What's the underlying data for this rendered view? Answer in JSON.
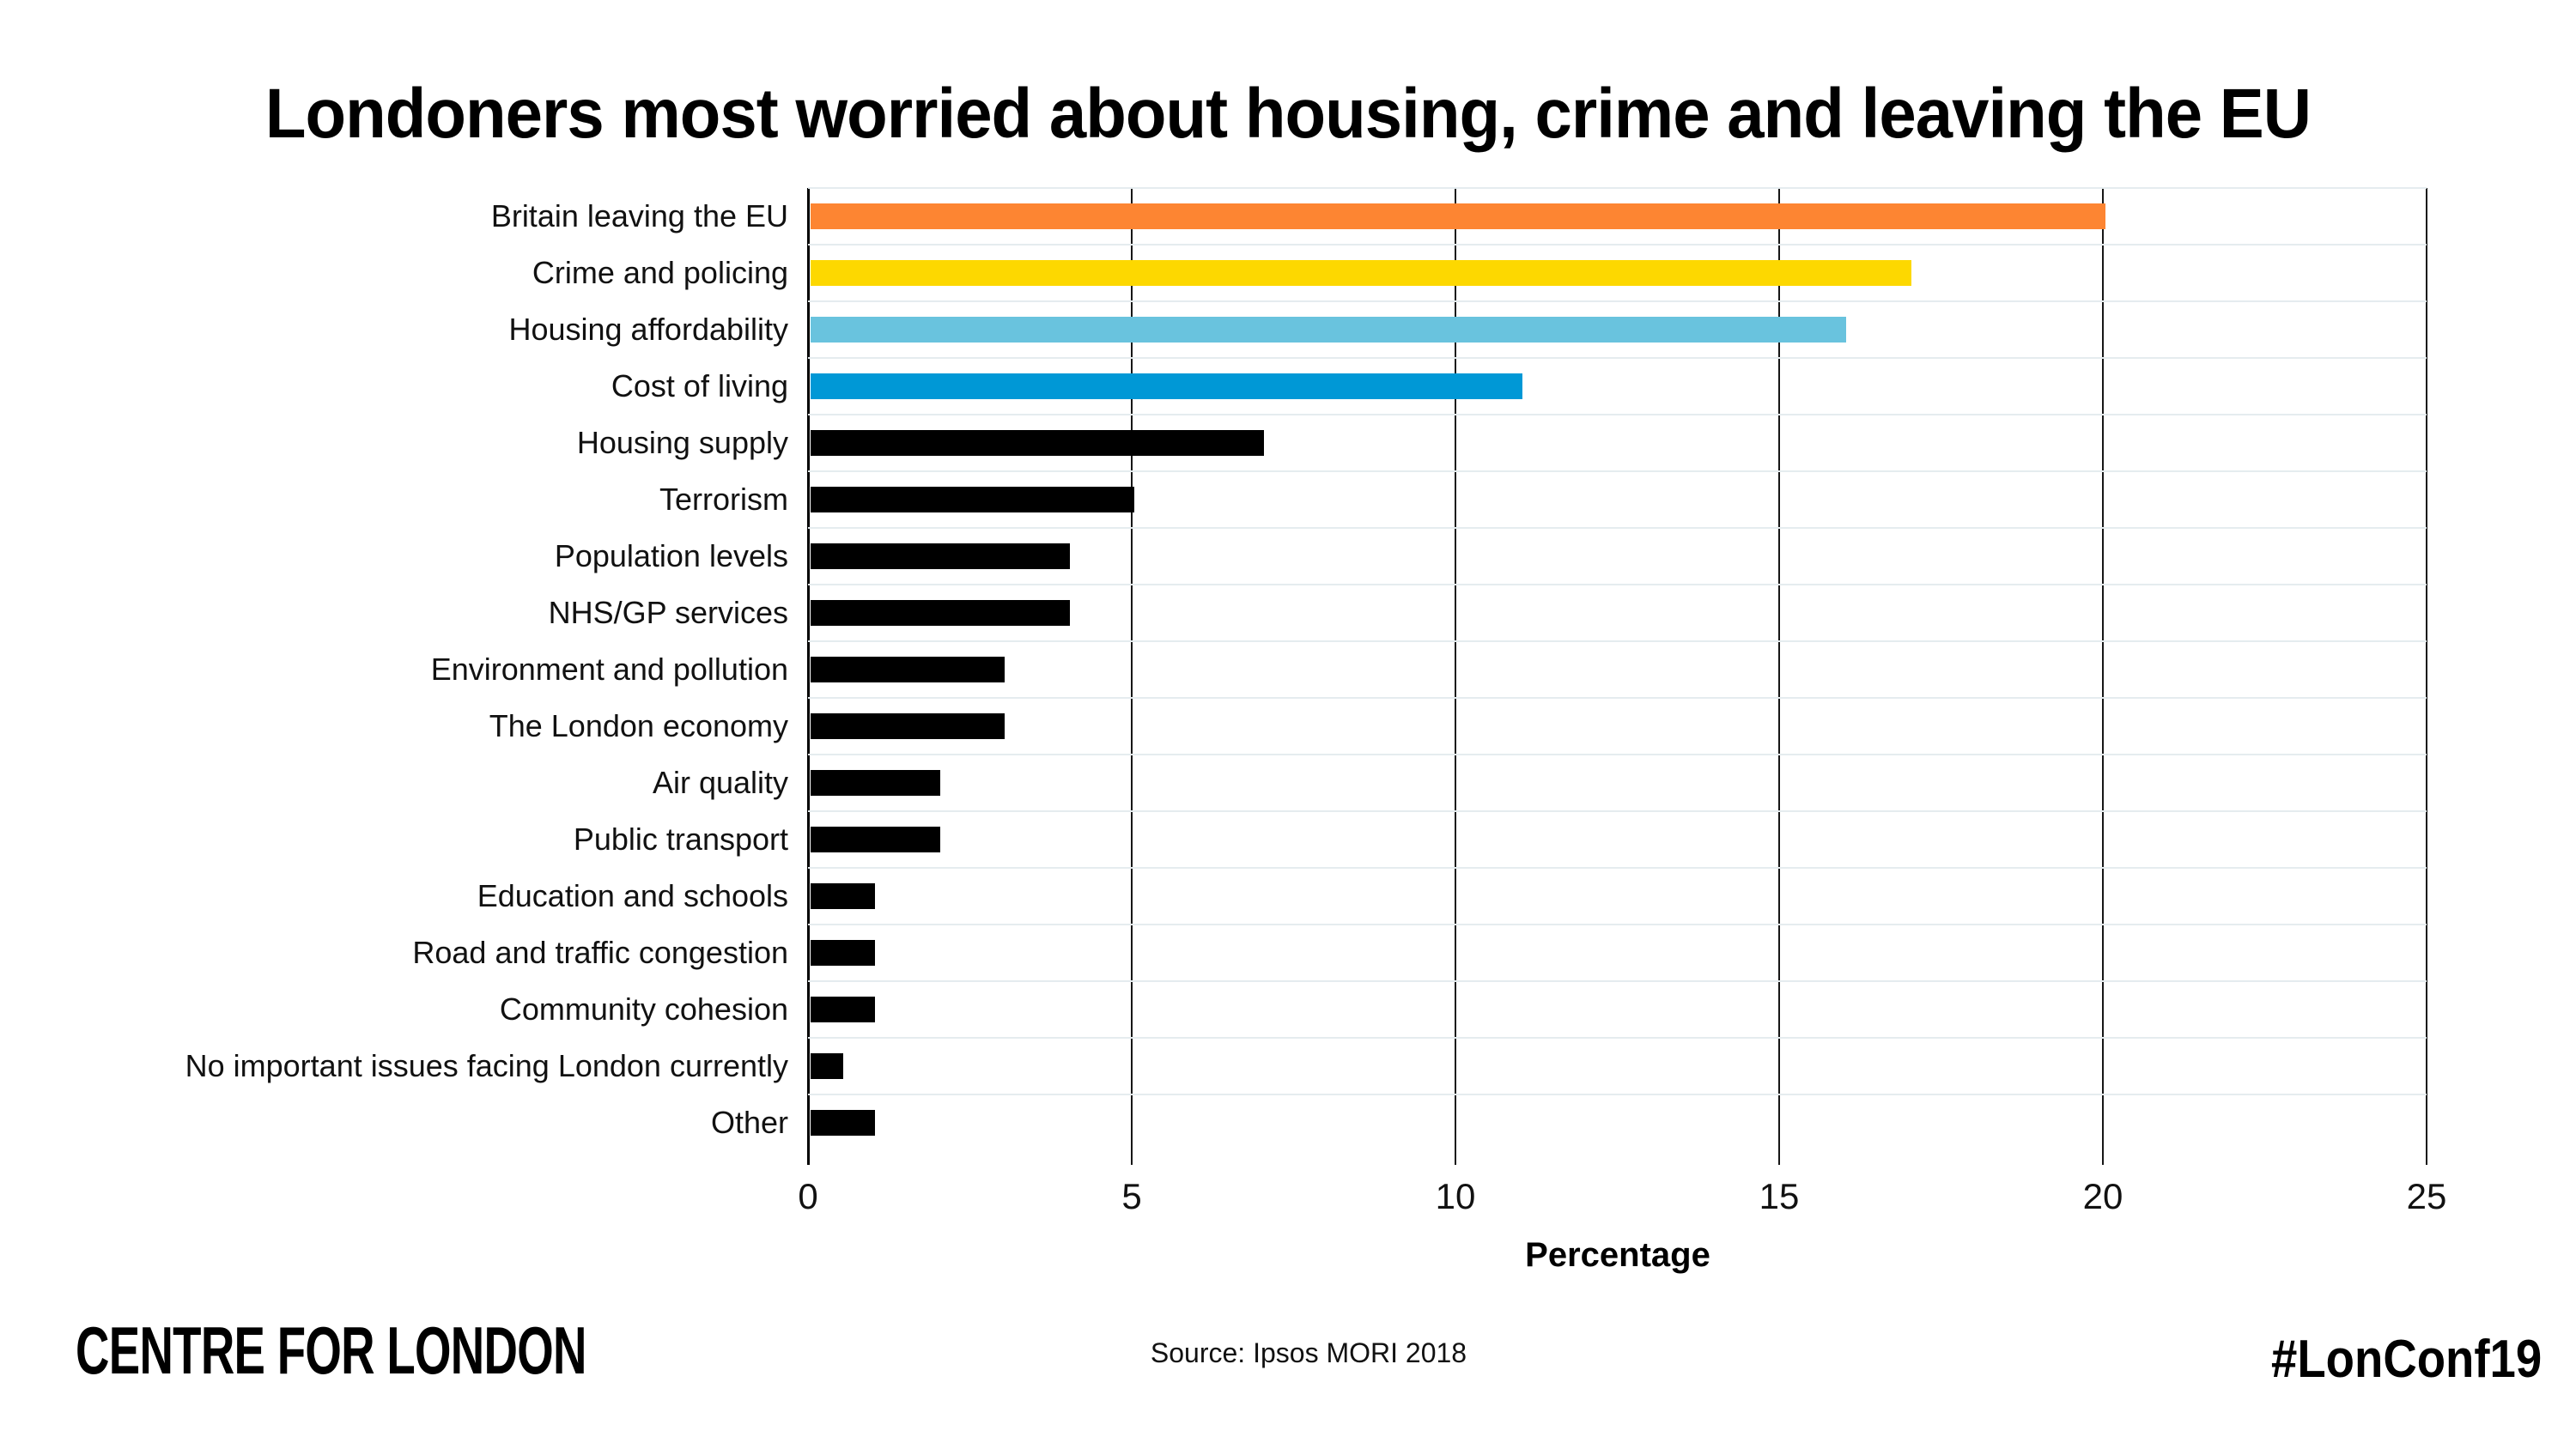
{
  "title": "Londoners most worried about housing, crime and leaving the EU",
  "footer": {
    "brand": "CENTRE FOR LONDON",
    "source": "Source: Ipsos MORI 2018",
    "hashtag": "#LonConf19"
  },
  "chart_data": {
    "type": "bar",
    "orientation": "horizontal",
    "title": "Londoners most worried about housing, crime and leaving the EU",
    "xlabel": "Percentage",
    "ylabel": "",
    "xlim": [
      0,
      25
    ],
    "xticks": [
      0,
      5,
      10,
      15,
      20,
      25
    ],
    "grid": "vertical major gridlines; light horizontal row separators",
    "legend": "none",
    "categories": [
      "Britain leaving the EU",
      "Crime and policing",
      "Housing affordability",
      "Cost of living",
      "Housing supply",
      "Terrorism",
      "Population levels",
      "NHS/GP services",
      "Environment and pollution",
      "The London economy",
      "Air quality",
      "Public transport",
      "Education and schools",
      "Road and traffic congestion",
      "Community cohesion",
      "No important issues facing London currently",
      "Other"
    ],
    "values": [
      20,
      17,
      16,
      11,
      7,
      5,
      4,
      4,
      3,
      3,
      2,
      2,
      1,
      1,
      1,
      0.5,
      1
    ],
    "bar_colors": [
      "#FD8532",
      "#FDD800",
      "#69C3DE",
      "#0098D6",
      "#000000",
      "#000000",
      "#000000",
      "#000000",
      "#000000",
      "#000000",
      "#000000",
      "#000000",
      "#000000",
      "#000000",
      "#000000",
      "#000000",
      "#000000"
    ],
    "colors": {
      "highlight_orange": "#FD8532",
      "highlight_yellow": "#FDD800",
      "highlight_lightblue": "#69C3DE",
      "highlight_blue": "#0098D6",
      "default_bar": "#000000",
      "row_separator": "#E5ECEF",
      "gridline": "#161616"
    }
  }
}
